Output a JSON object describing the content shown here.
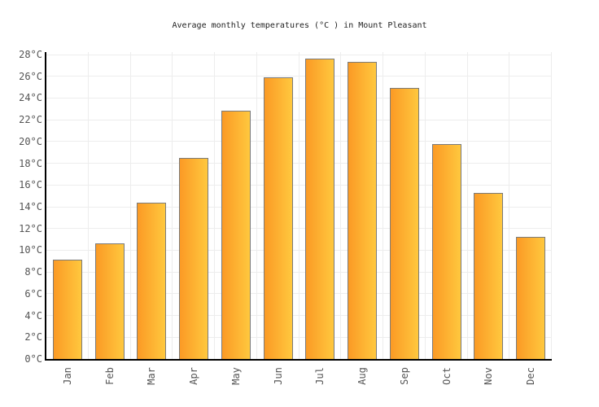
{
  "chart_data": {
    "type": "bar",
    "title": "Average monthly temperatures (°C ) in Mount Pleasant",
    "categories": [
      "Jan",
      "Feb",
      "Mar",
      "Apr",
      "May",
      "Jun",
      "Jul",
      "Aug",
      "Sep",
      "Oct",
      "Nov",
      "Dec"
    ],
    "values": [
      9.1,
      10.6,
      14.4,
      18.5,
      22.8,
      25.9,
      27.6,
      27.3,
      24.9,
      19.8,
      15.3,
      11.2
    ],
    "xlabel": "",
    "ylabel": "",
    "ylim": [
      0,
      28
    ],
    "ytick_step": 2,
    "ytick_suffix": "°C",
    "grid": true,
    "legend": "none",
    "colors": {
      "bar_gradient_left": "#FB9A25",
      "bar_gradient_right": "#FFC83E",
      "bar_border": "#7B7B7B",
      "gridline": "#EDEDED",
      "axis": "#000000",
      "tick_label": "#555555",
      "title": "#222222"
    }
  }
}
